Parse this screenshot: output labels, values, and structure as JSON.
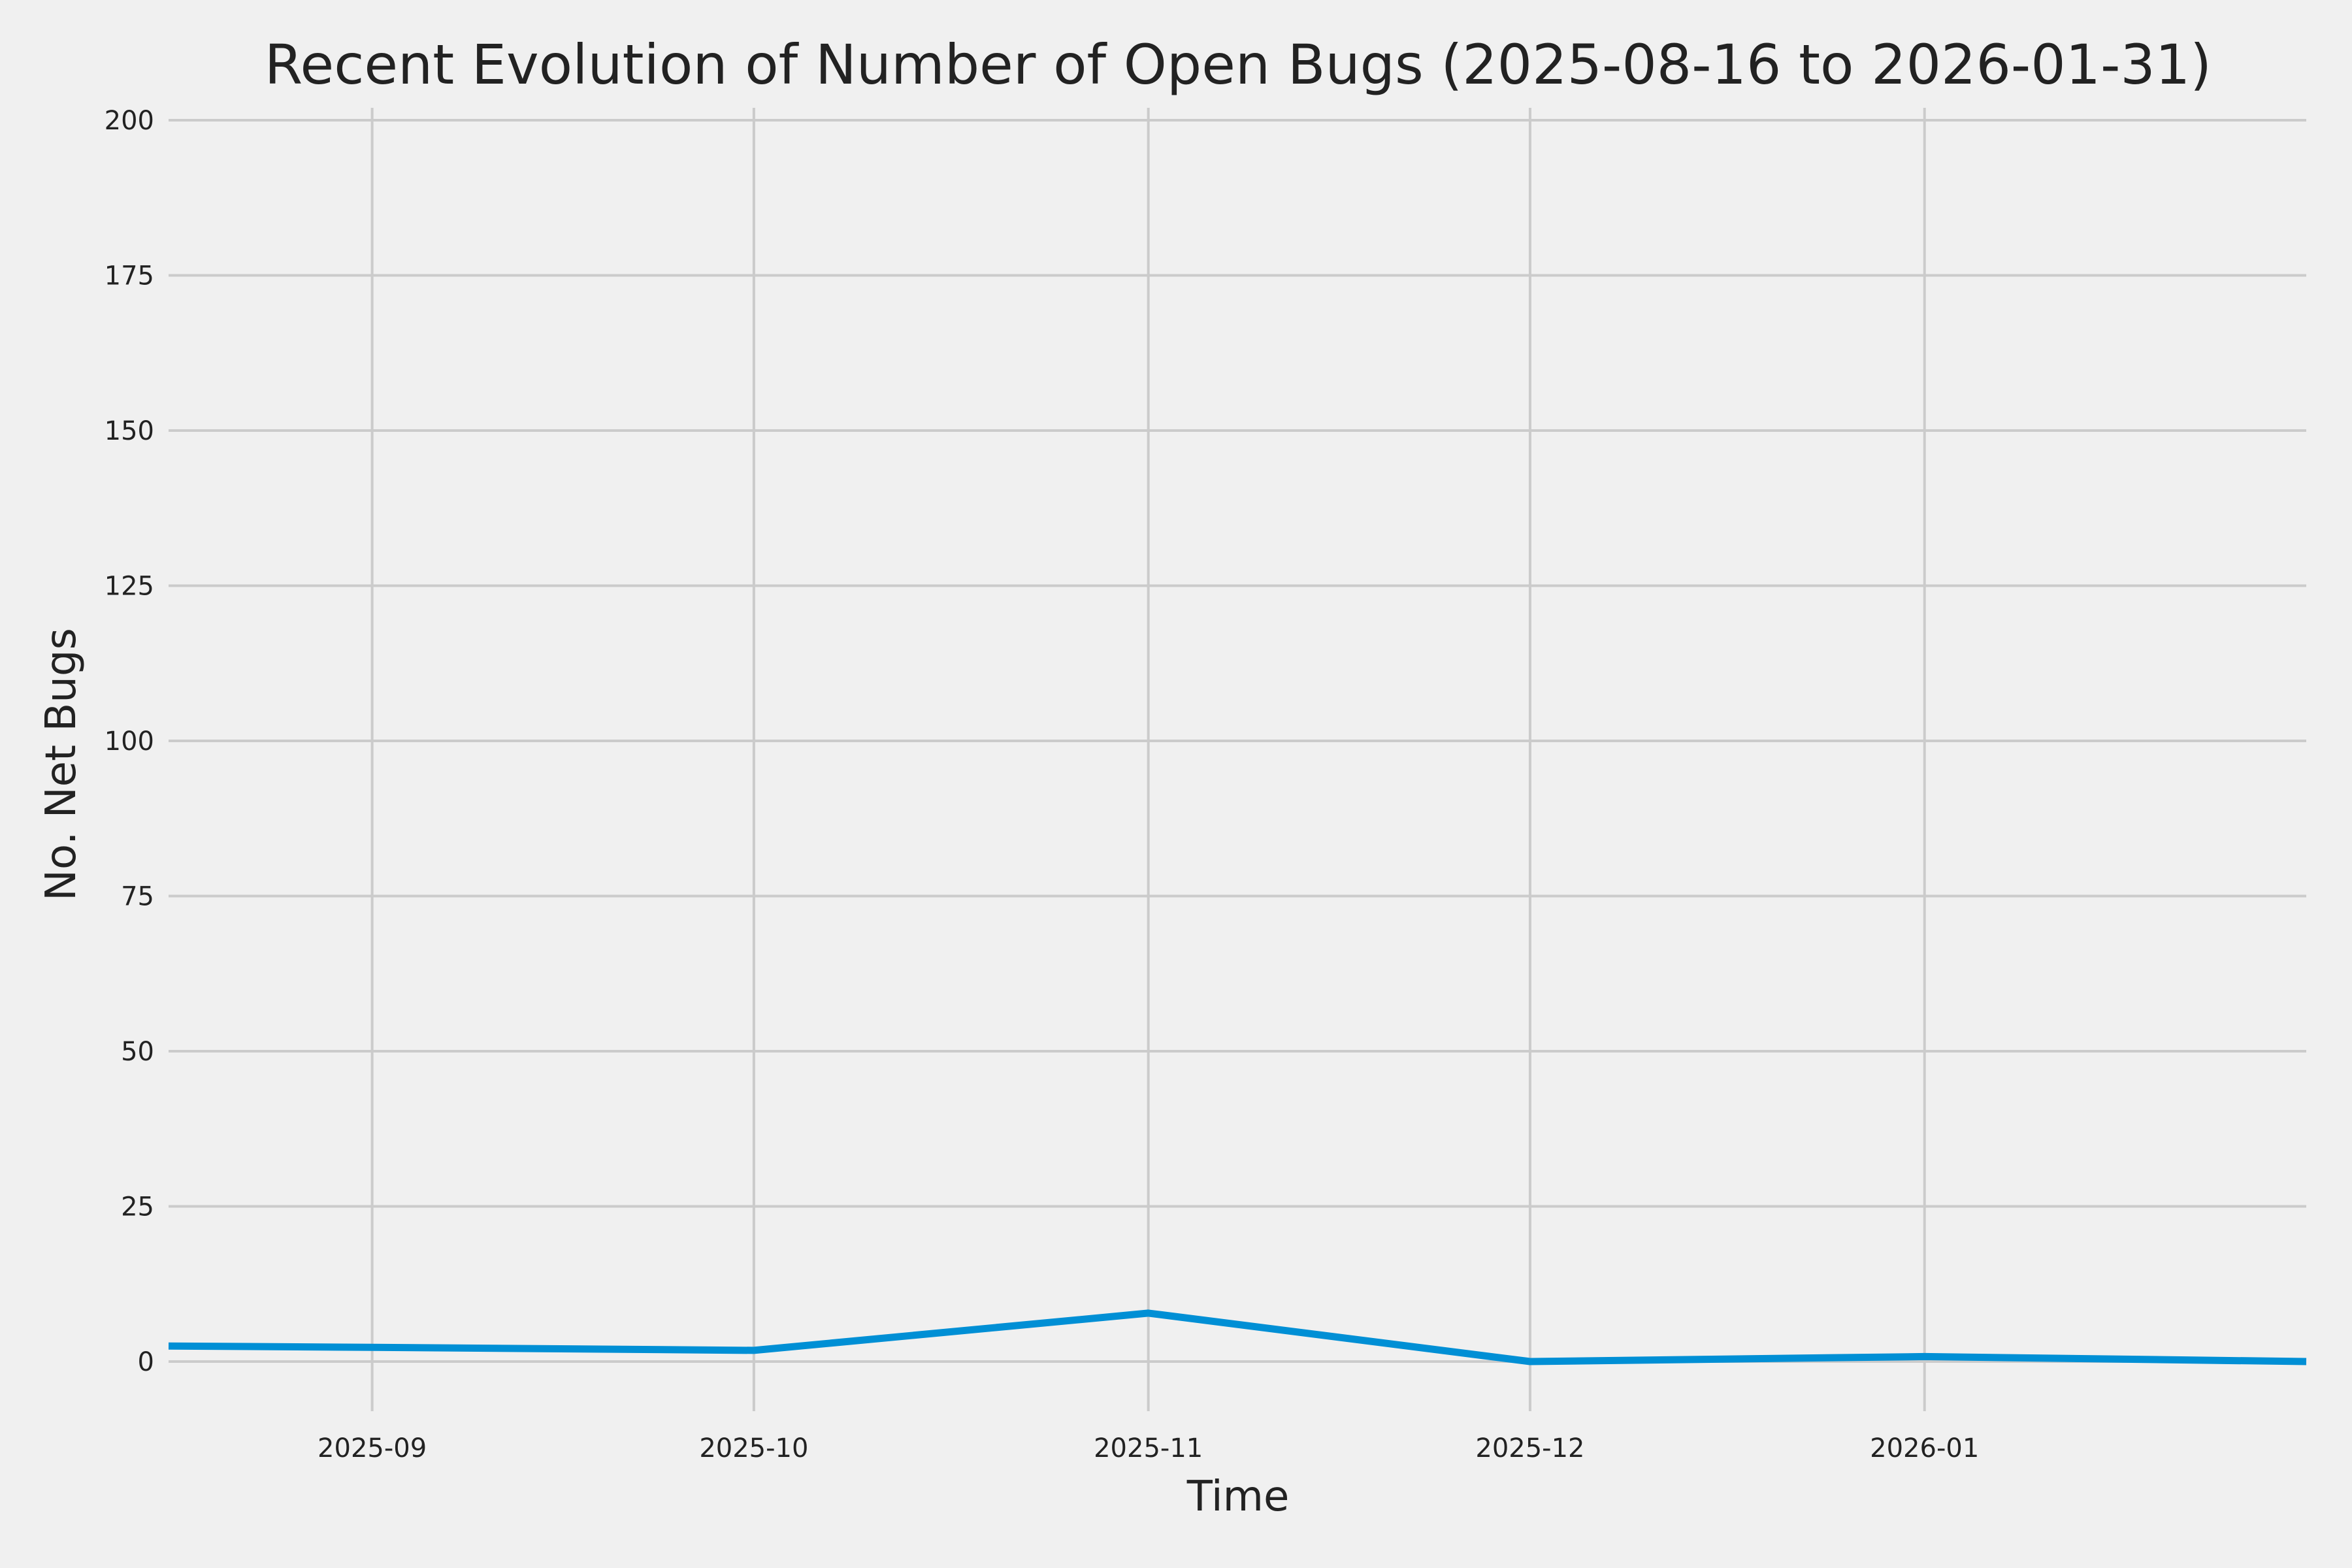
{
  "chart_data": {
    "type": "line",
    "title": "Recent Evolution of Number of Open Bugs (2025-08-16 to 2026-01-31)",
    "xlabel": "Time",
    "ylabel": "No. Net Bugs",
    "xlim": [
      "2025-08-16",
      "2026-01-31"
    ],
    "ylim": [
      -8,
      202
    ],
    "grid": true,
    "yticks": [
      0,
      25,
      50,
      75,
      100,
      125,
      150,
      175,
      200
    ],
    "xticks": [
      {
        "date": "2025-09-01",
        "label": "2025-09"
      },
      {
        "date": "2025-10-01",
        "label": "2025-10"
      },
      {
        "date": "2025-11-01",
        "label": "2025-11"
      },
      {
        "date": "2025-12-01",
        "label": "2025-12"
      },
      {
        "date": "2026-01-01",
        "label": "2026-01"
      }
    ],
    "series": [
      {
        "color": "#008fd5",
        "points": [
          {
            "x": "2025-08-16",
            "y": 2.5
          },
          {
            "x": "2025-09-01",
            "y": 2.3
          },
          {
            "x": "2025-10-01",
            "y": 1.8
          },
          {
            "x": "2025-11-01",
            "y": 7.8
          },
          {
            "x": "2025-12-01",
            "y": 0
          },
          {
            "x": "2026-01-01",
            "y": 0.8
          },
          {
            "x": "2026-01-31",
            "y": 0
          }
        ]
      }
    ]
  },
  "colors": {
    "background": "#f0f0f0",
    "grid": "#cbcbcb",
    "text": "#222222"
  }
}
